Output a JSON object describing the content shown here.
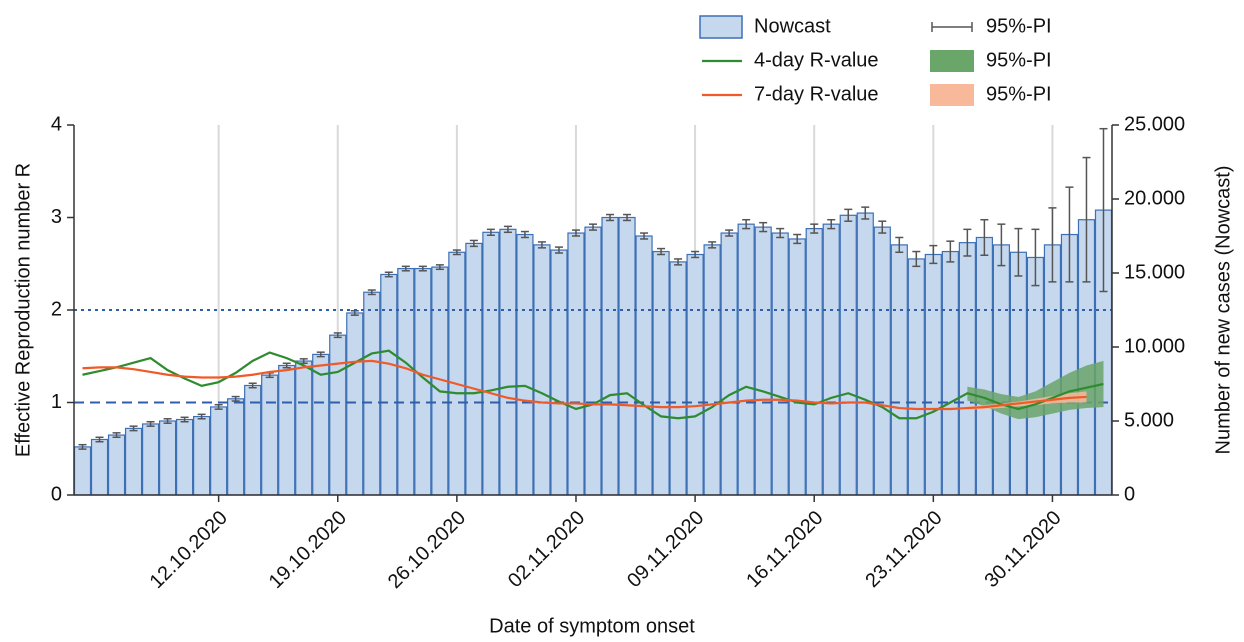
{
  "chart_data": {
    "type": "bar",
    "y_label": "Effective Reproduction number R",
    "y2_label": "Number of new cases (Nowcast)",
    "x_label": "Date of symptom onset",
    "categories": [
      null,
      null,
      null,
      null,
      null,
      null,
      null,
      null,
      "12.10.2020",
      null,
      null,
      null,
      null,
      null,
      null,
      "19.10.2020",
      null,
      null,
      null,
      null,
      null,
      null,
      "26.10.2020",
      null,
      null,
      null,
      null,
      null,
      null,
      "02.11.2020",
      null,
      null,
      null,
      null,
      null,
      null,
      "09.11.2020",
      null,
      null,
      null,
      null,
      null,
      null,
      "16.11.2020",
      null,
      null,
      null,
      null,
      null,
      null,
      "23.11.2020",
      null,
      null,
      null,
      null,
      null,
      null,
      "30.11.2020",
      null,
      null,
      null
    ],
    "ylim": [
      0,
      4
    ],
    "yticks": [
      0,
      1,
      2,
      3,
      4
    ],
    "y2lim": [
      0,
      25000
    ],
    "y2ticks": [
      0,
      {
        "value": 5000,
        "label": "5.000"
      },
      {
        "value": 10000,
        "label": "10.000"
      },
      {
        "value": 15000,
        "label": "15.000"
      },
      {
        "value": 20000,
        "label": "20.000"
      },
      {
        "value": 25000,
        "label": "25.000"
      }
    ],
    "grid": true,
    "hlines": [
      {
        "value": 2,
        "style": "dotted",
        "color": "#2e5fa8"
      },
      {
        "value": 1,
        "style": "dashed",
        "color": "#2e5fa8"
      }
    ],
    "series": [
      {
        "name": "Nowcast",
        "type": "bar",
        "axis": "y2",
        "color": "#c5d8ee",
        "edge_color": "#3d6fb5",
        "interval_name": "95%-PI",
        "interval_color": "#555555",
        "values": [
          3250,
          3750,
          4050,
          4500,
          4800,
          5000,
          5100,
          5300,
          5950,
          6500,
          7400,
          8100,
          8750,
          9050,
          9500,
          10800,
          12300,
          13700,
          14900,
          15300,
          15300,
          15400,
          16400,
          17000,
          17750,
          17950,
          17600,
          16900,
          16550,
          17700,
          18100,
          18750,
          18750,
          17500,
          16450,
          15750,
          16250,
          16900,
          17700,
          18300,
          18100,
          17700,
          17300,
          18000,
          18300,
          18900,
          19050,
          18100,
          16900,
          15950,
          16250,
          16450,
          17050,
          17400,
          16900,
          16400,
          16050,
          16900,
          17600,
          18600,
          19250
        ],
        "error": [
          150,
          150,
          150,
          150,
          150,
          150,
          150,
          150,
          150,
          150,
          150,
          150,
          150,
          150,
          150,
          150,
          150,
          150,
          150,
          150,
          150,
          150,
          150,
          200,
          200,
          200,
          200,
          200,
          200,
          200,
          200,
          200,
          200,
          200,
          200,
          200,
          200,
          200,
          200,
          300,
          300,
          300,
          300,
          300,
          300,
          400,
          400,
          400,
          500,
          500,
          600,
          700,
          900,
          1200,
          1400,
          1600,
          1900,
          2500,
          3200,
          4200,
          5500
        ]
      },
      {
        "name": "4-day R-value",
        "type": "line",
        "color": "#2e8b2e",
        "interval_name": "95%-PI",
        "interval_color": "#6aa56a",
        "values": [
          1.3,
          1.34,
          1.38,
          1.43,
          1.48,
          1.35,
          1.26,
          1.18,
          1.22,
          1.32,
          1.45,
          1.54,
          1.48,
          1.4,
          1.3,
          1.33,
          1.43,
          1.53,
          1.56,
          1.43,
          1.27,
          1.12,
          1.1,
          1.1,
          1.13,
          1.17,
          1.18,
          1.1,
          1.01,
          0.93,
          0.98,
          1.08,
          1.1,
          0.97,
          0.85,
          0.83,
          0.85,
          0.95,
          1.08,
          1.17,
          1.12,
          1.06,
          1.0,
          0.98,
          1.05,
          1.1,
          1.03,
          0.95,
          0.83,
          0.83,
          0.9,
          1.0,
          1.1,
          1.05,
          0.98,
          0.93,
          0.98,
          1.05,
          1.12,
          1.16,
          1.2
        ],
        "lower": [
          null,
          null,
          null,
          null,
          null,
          null,
          null,
          null,
          null,
          null,
          null,
          null,
          null,
          null,
          null,
          null,
          null,
          null,
          null,
          null,
          null,
          null,
          null,
          null,
          null,
          null,
          null,
          null,
          null,
          null,
          null,
          null,
          null,
          null,
          null,
          null,
          null,
          null,
          null,
          null,
          null,
          null,
          null,
          null,
          null,
          null,
          null,
          null,
          null,
          null,
          null,
          null,
          1.02,
          0.96,
          0.88,
          0.82,
          0.84,
          0.88,
          0.92,
          0.94,
          0.95
        ],
        "upper": [
          null,
          null,
          null,
          null,
          null,
          null,
          null,
          null,
          null,
          null,
          null,
          null,
          null,
          null,
          null,
          null,
          null,
          null,
          null,
          null,
          null,
          null,
          null,
          null,
          null,
          null,
          null,
          null,
          null,
          null,
          null,
          null,
          null,
          null,
          null,
          null,
          null,
          null,
          null,
          null,
          null,
          null,
          null,
          null,
          null,
          null,
          null,
          null,
          null,
          null,
          null,
          null,
          1.17,
          1.14,
          1.09,
          1.06,
          1.12,
          1.22,
          1.32,
          1.4,
          1.45
        ]
      },
      {
        "name": "7-day R-value",
        "type": "line",
        "color": "#f05a28",
        "interval_name": "95%-PI",
        "interval_color": "#f8b89a",
        "values": [
          1.37,
          1.38,
          1.38,
          1.36,
          1.33,
          1.3,
          1.28,
          1.27,
          1.27,
          1.28,
          1.3,
          1.33,
          1.35,
          1.38,
          1.4,
          1.42,
          1.44,
          1.45,
          1.42,
          1.37,
          1.3,
          1.25,
          1.2,
          1.15,
          1.1,
          1.05,
          1.02,
          1.0,
          0.99,
          0.99,
          0.98,
          0.98,
          0.97,
          0.96,
          0.95,
          0.95,
          0.96,
          0.98,
          1.0,
          1.02,
          1.03,
          1.03,
          1.02,
          1.0,
          0.99,
          1.0,
          1.0,
          0.97,
          0.94,
          0.93,
          0.93,
          0.93,
          0.94,
          0.95,
          0.97,
          0.99,
          1.01,
          1.03,
          1.05,
          1.06,
          null
        ],
        "lower": [
          null,
          null,
          null,
          null,
          null,
          null,
          null,
          null,
          null,
          null,
          null,
          null,
          null,
          null,
          null,
          null,
          null,
          null,
          null,
          null,
          null,
          null,
          null,
          null,
          null,
          null,
          null,
          null,
          null,
          null,
          null,
          null,
          null,
          null,
          null,
          null,
          null,
          null,
          null,
          null,
          null,
          null,
          null,
          null,
          null,
          null,
          null,
          null,
          null,
          null,
          null,
          null,
          0.92,
          0.93,
          0.94,
          0.96,
          0.97,
          0.99,
          1.0,
          1.0,
          null
        ],
        "upper": [
          null,
          null,
          null,
          null,
          null,
          null,
          null,
          null,
          null,
          null,
          null,
          null,
          null,
          null,
          null,
          null,
          null,
          null,
          null,
          null,
          null,
          null,
          null,
          null,
          null,
          null,
          null,
          null,
          null,
          null,
          null,
          null,
          null,
          null,
          null,
          null,
          null,
          null,
          null,
          null,
          null,
          null,
          null,
          null,
          null,
          null,
          null,
          null,
          null,
          null,
          null,
          null,
          0.96,
          0.97,
          0.99,
          1.01,
          1.04,
          1.07,
          1.1,
          1.12,
          null
        ]
      }
    ]
  }
}
